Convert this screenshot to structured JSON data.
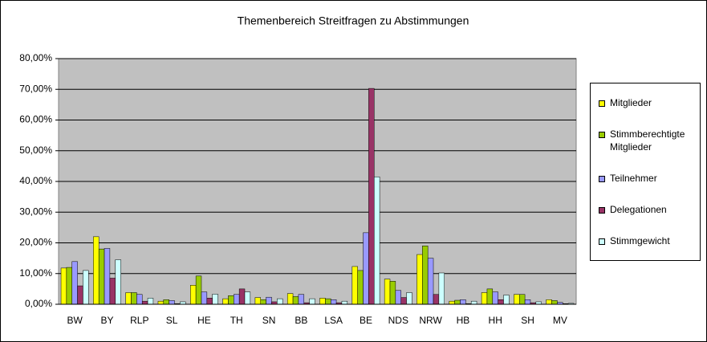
{
  "chart_data": {
    "type": "bar",
    "title": "Themenbereich Streitfragen zu Abstimmungen",
    "categories": [
      "BW",
      "BY",
      "RLP",
      "SL",
      "HE",
      "TH",
      "SN",
      "BB",
      "LSA",
      "BE",
      "NDS",
      "NRW",
      "HB",
      "HH",
      "SH",
      "MV"
    ],
    "series": [
      {
        "name": "Mitglieder",
        "color": "#ffff00",
        "values": [
          11.8,
          22,
          3.8,
          1,
          6.2,
          1.8,
          2.2,
          3.5,
          2,
          12.3,
          8.2,
          16.2,
          1,
          3.8,
          3.2,
          1.5
        ]
      },
      {
        "name": "Stimmberechtigte Mitglieder",
        "color": "#99cc00",
        "values": [
          12,
          18,
          3.8,
          1.5,
          9.2,
          2.8,
          1.5,
          2.5,
          1.8,
          11,
          7.5,
          19,
          1.3,
          5,
          3.2,
          1.2
        ]
      },
      {
        "name": "Teilnehmer",
        "color": "#9999ff",
        "values": [
          13.9,
          18.2,
          3.2,
          1.2,
          4,
          3.2,
          2.3,
          3.2,
          1.5,
          23.3,
          4.5,
          15,
          1.5,
          4,
          1.5,
          0.6
        ]
      },
      {
        "name": "Delegationen",
        "color": "#993366",
        "values": [
          6,
          8.5,
          1,
          0.2,
          2,
          5,
          0.8,
          0.5,
          0.5,
          70.3,
          2.2,
          3.2,
          0.2,
          1.5,
          0.5,
          0.2
        ]
      },
      {
        "name": "Stimmgewicht",
        "color": "#ccffff",
        "values": [
          11,
          14.5,
          2,
          0.8,
          3.3,
          4,
          1.8,
          1.8,
          1,
          41.5,
          3.8,
          10.2,
          1,
          3,
          0.8,
          0.3
        ]
      }
    ],
    "ylim": [
      0,
      80
    ],
    "yticks": [
      {
        "value": 0,
        "label": "0,00%"
      },
      {
        "value": 10,
        "label": "10,00%"
      },
      {
        "value": 20,
        "label": "20,00%"
      },
      {
        "value": 30,
        "label": "30,00%"
      },
      {
        "value": 40,
        "label": "40,00%"
      },
      {
        "value": 50,
        "label": "50,00%"
      },
      {
        "value": 60,
        "label": "60,00%"
      },
      {
        "value": 70,
        "label": "70,00%"
      },
      {
        "value": 80,
        "label": "80,00%"
      }
    ],
    "grid": true,
    "legend": "right"
  }
}
